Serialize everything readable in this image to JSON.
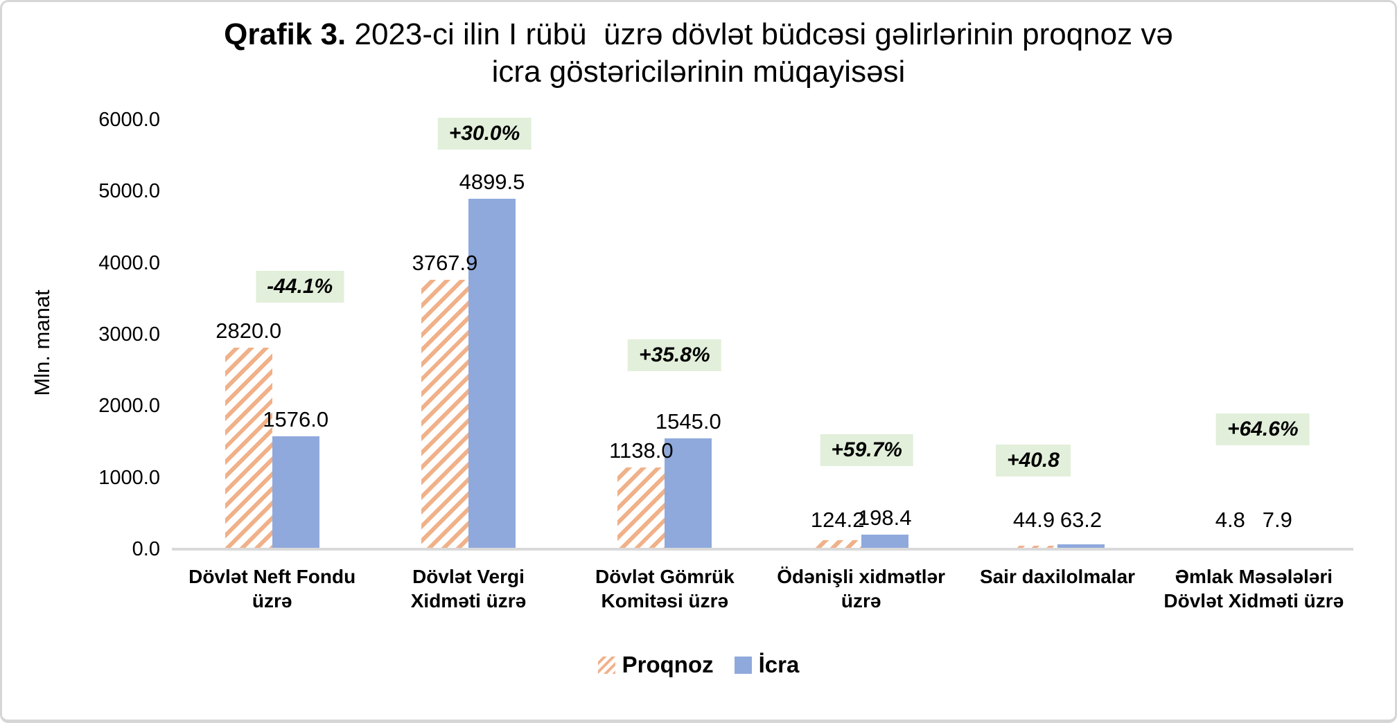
{
  "title": {
    "bold": "Qrafik 3.",
    "line1": "2023-ci ilin I rübü  üzrə dövlət büdcəsi gəlirlərinin proqnoz və",
    "line2": "icra göstəricilərinin müqayisəsi"
  },
  "colors": {
    "proqnoz_hatch": "#f0b189",
    "icra_bar": "#8fa9dc",
    "badge_bg": "#e2efda",
    "axis_line": "#d9d9d9",
    "text": "#000000",
    "panel_border": "#d6d6d6"
  },
  "chart_data": {
    "type": "bar",
    "title": "Qrafik 3. 2023-ci ilin I rübü üzrə dövlət büdcəsi gəlirlərinin proqnoz və icra göstəricilərinin müqayisəsi",
    "xlabel": "",
    "ylabel": "Mln. manat",
    "ylim": [
      0,
      6000
    ],
    "ytick_labels": [
      "0.0",
      "1000.0",
      "2000.0",
      "3000.0",
      "4000.0",
      "5000.0",
      "6000.0"
    ],
    "grid": false,
    "legend_position": "bottom",
    "categories": [
      "Dövlət Neft Fondu\nüzrə",
      "Dövlət Vergi\nXidməti üzrə",
      "Dövlət Gömrük\nKomitəsi üzrə",
      "Ödənişli xidmətlər\nüzrə",
      "Sair daxilolmalar",
      "Əmlak Məsələləri\nDövlət Xidməti üzrə"
    ],
    "series": [
      {
        "name": "Proqnoz",
        "pattern": "diagonal-hatch",
        "color": "#f0b189",
        "values": [
          2820.0,
          3767.9,
          1138.0,
          124.2,
          44.9,
          4.8
        ]
      },
      {
        "name": "İcra",
        "pattern": "solid",
        "color": "#8fa9dc",
        "values": [
          1576.0,
          4899.5,
          1545.0,
          198.4,
          63.2,
          7.9
        ]
      }
    ],
    "badges": [
      {
        "text": "-44.1%",
        "y": 3450,
        "dx": 40
      },
      {
        "text": "+30.0%",
        "y": 5580,
        "dx": 23
      },
      {
        "text": "+35.8%",
        "y": 2490,
        "dx": 14
      },
      {
        "text": "+59.7%",
        "y": 1160,
        "dx": 8
      },
      {
        "text": "+40.8",
        "y": 1020,
        "dx": -35
      },
      {
        "text": "+64.6%",
        "y": 1450,
        "dx": 13
      }
    ]
  }
}
